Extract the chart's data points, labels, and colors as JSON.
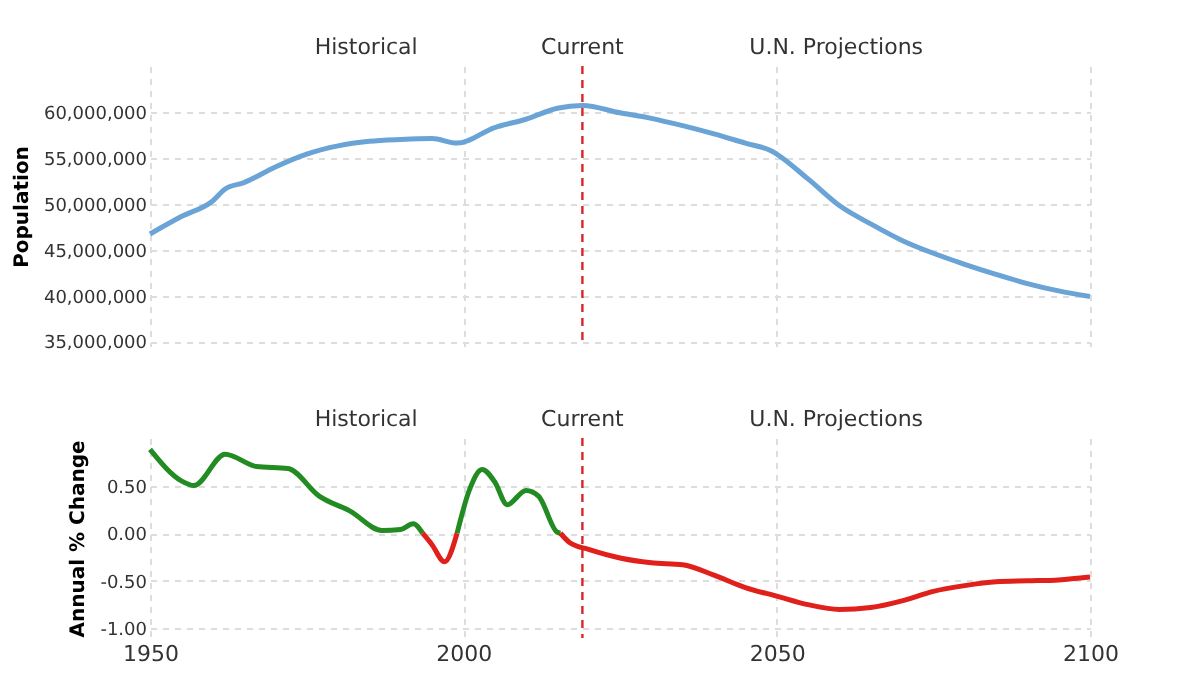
{
  "chart_data": [
    {
      "type": "line",
      "ylabel": "Population",
      "xlim": [
        1950,
        2100
      ],
      "xticks": [
        1950,
        2000,
        2050,
        2100
      ],
      "ylim": [
        34500000,
        65000000
      ],
      "yticks": [
        {
          "value": 35000000,
          "label": "35,000,000"
        },
        {
          "value": 40000000,
          "label": "40,000,000"
        },
        {
          "value": 45000000,
          "label": "45,000,000"
        },
        {
          "value": 50000000,
          "label": "50,000,000"
        },
        {
          "value": 55000000,
          "label": "55,000,000"
        },
        {
          "value": 60000000,
          "label": "60,000,000"
        }
      ],
      "grid": true,
      "tick_labels": "y",
      "series": [
        {
          "color": "#6aa3d5",
          "x": [
            1950,
            1955,
            1960,
            1962,
            1965,
            1970,
            1975,
            1980,
            1985,
            1990,
            1995,
            1999,
            2005,
            2010,
            2015,
            2019,
            2025,
            2030,
            2035,
            2040,
            2045,
            2049,
            2055,
            2060,
            2065,
            2070,
            2075,
            2080,
            2085,
            2090,
            2095,
            2100
          ],
          "values": [
            46700000,
            48600000,
            50300000,
            51600000,
            52300000,
            54000000,
            55400000,
            56300000,
            56800000,
            57000000,
            57100000,
            56600000,
            58300000,
            59200000,
            60400000,
            60700000,
            59900000,
            59300000,
            58500000,
            57600000,
            56600000,
            55800000,
            52700000,
            49800000,
            47800000,
            46000000,
            44600000,
            43400000,
            42300000,
            41300000,
            40500000,
            39900000
          ]
        }
      ],
      "ref_lines": [
        {
          "axis": "x",
          "value": 2019,
          "label": "Current",
          "color": "#d62728",
          "line_style": "dashed"
        }
      ],
      "annotations": [
        "Historical",
        "U.N. Projections"
      ]
    },
    {
      "type": "line",
      "ylabel": "Annual % Change",
      "xlim": [
        1950,
        2100
      ],
      "xticks": [
        1950,
        2000,
        2050,
        2100
      ],
      "ylim": [
        -1.1,
        1.0
      ],
      "yticks": [
        {
          "value": -1.0,
          "label": "-1.00"
        },
        {
          "value": -0.5,
          "label": "-0.50"
        },
        {
          "value": 0,
          "label": "0.00"
        },
        {
          "value": 0.5,
          "label": "0.50"
        }
      ],
      "grid": true,
      "series": [
        {
          "color": "#228b22",
          "x": [
            1950,
            1955,
            1957,
            1962,
            1967,
            1972,
            1977,
            1982,
            1987,
            1990,
            1992,
            1993.5,
            1996,
            1999,
            2001,
            2003,
            2005,
            2007,
            2010,
            2012,
            2015,
            2015.5
          ],
          "values": [
            0.88,
            0.55,
            0.5,
            0.83,
            0.7,
            0.68,
            0.39,
            0.23,
            0.03,
            0.04,
            0.1,
            0,
            null,
            0,
            0.46,
            0.67,
            0.54,
            0.3,
            0.45,
            0.39,
            0.01,
            0
          ]
        },
        {
          "color": "#e0201b",
          "x": [
            1993.5,
            1995,
            1997,
            1999,
            2007,
            2015.5,
            2017,
            2020,
            2025,
            2030,
            2035,
            2040,
            2045,
            2050,
            2055,
            2060,
            2065,
            2070,
            2075,
            2080,
            2085,
            2090,
            2095,
            2100
          ],
          "values": [
            0,
            -0.12,
            -0.3,
            0,
            null,
            0,
            -0.1,
            -0.17,
            -0.26,
            -0.31,
            -0.33,
            -0.44,
            -0.57,
            -0.66,
            -0.75,
            -0.8,
            -0.78,
            -0.71,
            -0.61,
            -0.55,
            -0.51,
            -0.5,
            -0.49,
            -0.46
          ]
        }
      ],
      "ref_lines": [
        {
          "axis": "x",
          "value": 2019,
          "label": "Current",
          "color": "#d62728",
          "line_style": "dashed"
        }
      ],
      "annotations": [
        "Historical",
        "U.N. Projections"
      ]
    }
  ]
}
